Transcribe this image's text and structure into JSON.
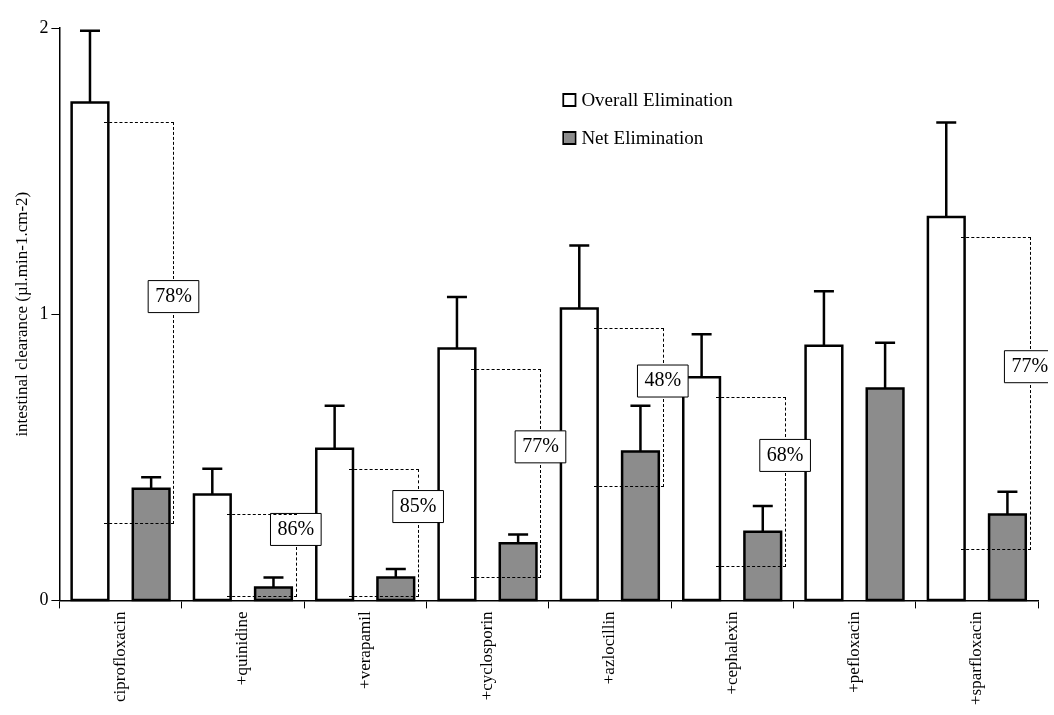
{
  "chart_data": {
    "type": "bar",
    "ylabel": "intestinal clearance (µl.min-1.cm-2)",
    "categories": [
      "ciprofloxacin",
      "+quinidine",
      "+verapamil",
      "+cyclosporin",
      "+azlocillin",
      "+cephalexin",
      "+pefloxacin",
      "+sparfloxacin"
    ],
    "series": [
      {
        "name": "Overall Elimination",
        "color": "#ffffff",
        "values": [
          1.74,
          0.37,
          0.53,
          0.88,
          1.02,
          0.78,
          0.89,
          1.34
        ],
        "errors": [
          [
            1.74,
            1.99
          ],
          [
            0.37,
            0.46
          ],
          [
            0.53,
            0.68
          ],
          [
            0.88,
            1.06
          ],
          [
            1.02,
            1.24
          ],
          [
            0.78,
            0.93
          ],
          [
            0.89,
            1.08
          ],
          [
            1.34,
            1.67
          ]
        ]
      },
      {
        "name": "Net Elimination",
        "color": "#8c8c8c",
        "values": [
          0.39,
          0.045,
          0.08,
          0.2,
          0.52,
          0.24,
          0.74,
          0.3
        ],
        "errors": [
          [
            0.39,
            0.43
          ],
          [
            0.045,
            0.08
          ],
          [
            0.08,
            0.11
          ],
          [
            0.2,
            0.23
          ],
          [
            0.52,
            0.68
          ],
          [
            0.24,
            0.33
          ],
          [
            0.74,
            0.9
          ],
          [
            0.3,
            0.38
          ]
        ]
      }
    ],
    "ylim": [
      0,
      2
    ],
    "yticks": [
      0,
      1,
      2
    ],
    "grid": false,
    "legend": "top",
    "annotations": [
      "78%",
      "86%",
      "85%",
      "77%",
      "48%",
      "68%",
      "77%"
    ]
  }
}
